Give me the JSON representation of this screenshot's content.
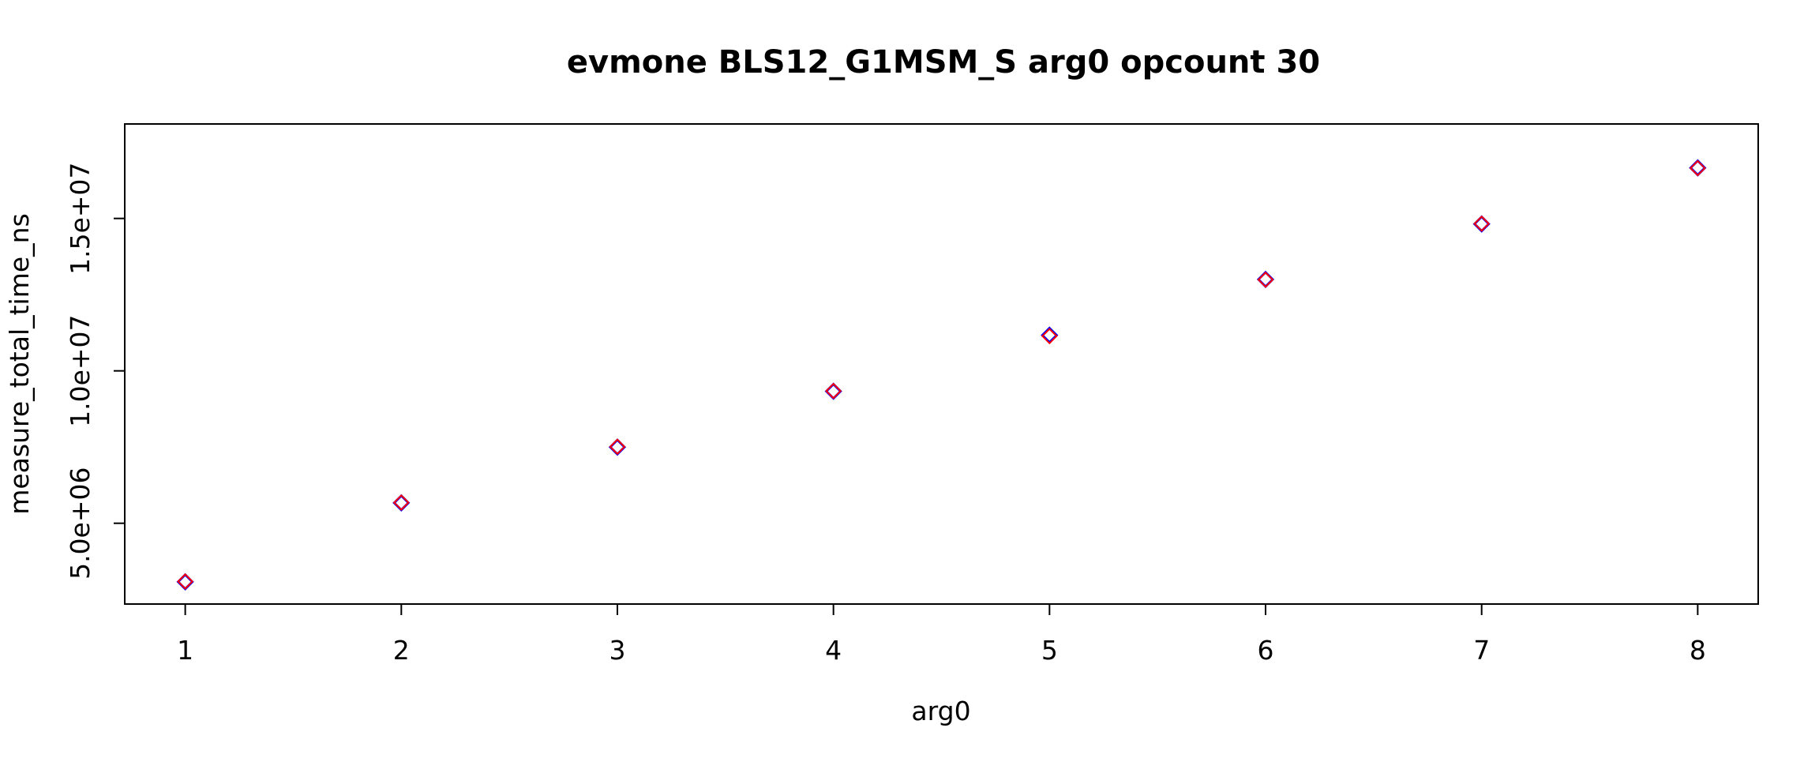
{
  "chart_data": {
    "type": "scatter",
    "title": "evmone BLS12_G1MSM_S arg0 opcount 30",
    "xlabel": "arg0",
    "ylabel": "measure_total_time_ns",
    "xlim": [
      0.72,
      8.28
    ],
    "ylim": [
      2350000,
      18100000
    ],
    "x_ticks": [
      1,
      2,
      3,
      4,
      5,
      6,
      7,
      8
    ],
    "x_tick_labels": [
      "1",
      "2",
      "3",
      "4",
      "5",
      "6",
      "7",
      "8"
    ],
    "y_ticks": [
      5000000,
      10000000,
      15000000
    ],
    "y_tick_labels": [
      "5.0e+06",
      "1.0e+07",
      "1.5e+07"
    ],
    "grid": false,
    "marker": "diamond",
    "series": [
      {
        "color": "#0000ff",
        "x": [
          1,
          2,
          3,
          4,
          5,
          6,
          7,
          8
        ],
        "y": [
          3080000,
          5670000,
          7500000,
          9330000,
          11170000,
          13000000,
          14820000,
          16660000
        ]
      },
      {
        "color": "#ff0000",
        "x": [
          1,
          2,
          3,
          4,
          5,
          6,
          7,
          8
        ],
        "y": [
          3090000,
          5680000,
          7510000,
          9340000,
          11140000,
          12990000,
          14830000,
          16650000
        ]
      }
    ]
  }
}
